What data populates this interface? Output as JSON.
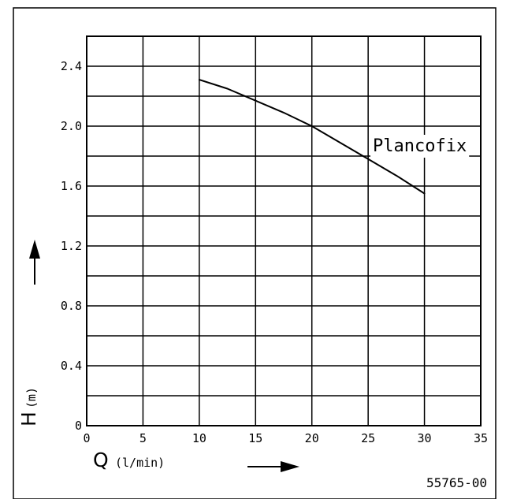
{
  "chart_data": {
    "type": "line",
    "xlabel": "Q",
    "xunit": "(l/min)",
    "ylabel": "H",
    "yunit": "(m)",
    "xlim": [
      0,
      35
    ],
    "ylim": [
      0,
      2.6
    ],
    "xticks": [
      0,
      5,
      10,
      15,
      20,
      25,
      30,
      35
    ],
    "xtick_labels": [
      "0",
      "5",
      "10",
      "15",
      "20",
      "25",
      "30",
      "35"
    ],
    "yticks": [
      0,
      0.4,
      0.8,
      1.2,
      1.6,
      2.0,
      2.4
    ],
    "ytick_labels": [
      "0",
      "0.4",
      "0.8",
      "1.2",
      "1.6",
      "2.0",
      "2.4"
    ],
    "grid": true,
    "series": [
      {
        "name": "Plancofix",
        "x": [
          10,
          12.5,
          15,
          17.5,
          20,
          22.5,
          25,
          27.5,
          30
        ],
        "y": [
          2.31,
          2.25,
          2.17,
          2.09,
          2.0,
          1.89,
          1.78,
          1.67,
          1.55
        ]
      }
    ],
    "annotation": "55765-00"
  }
}
